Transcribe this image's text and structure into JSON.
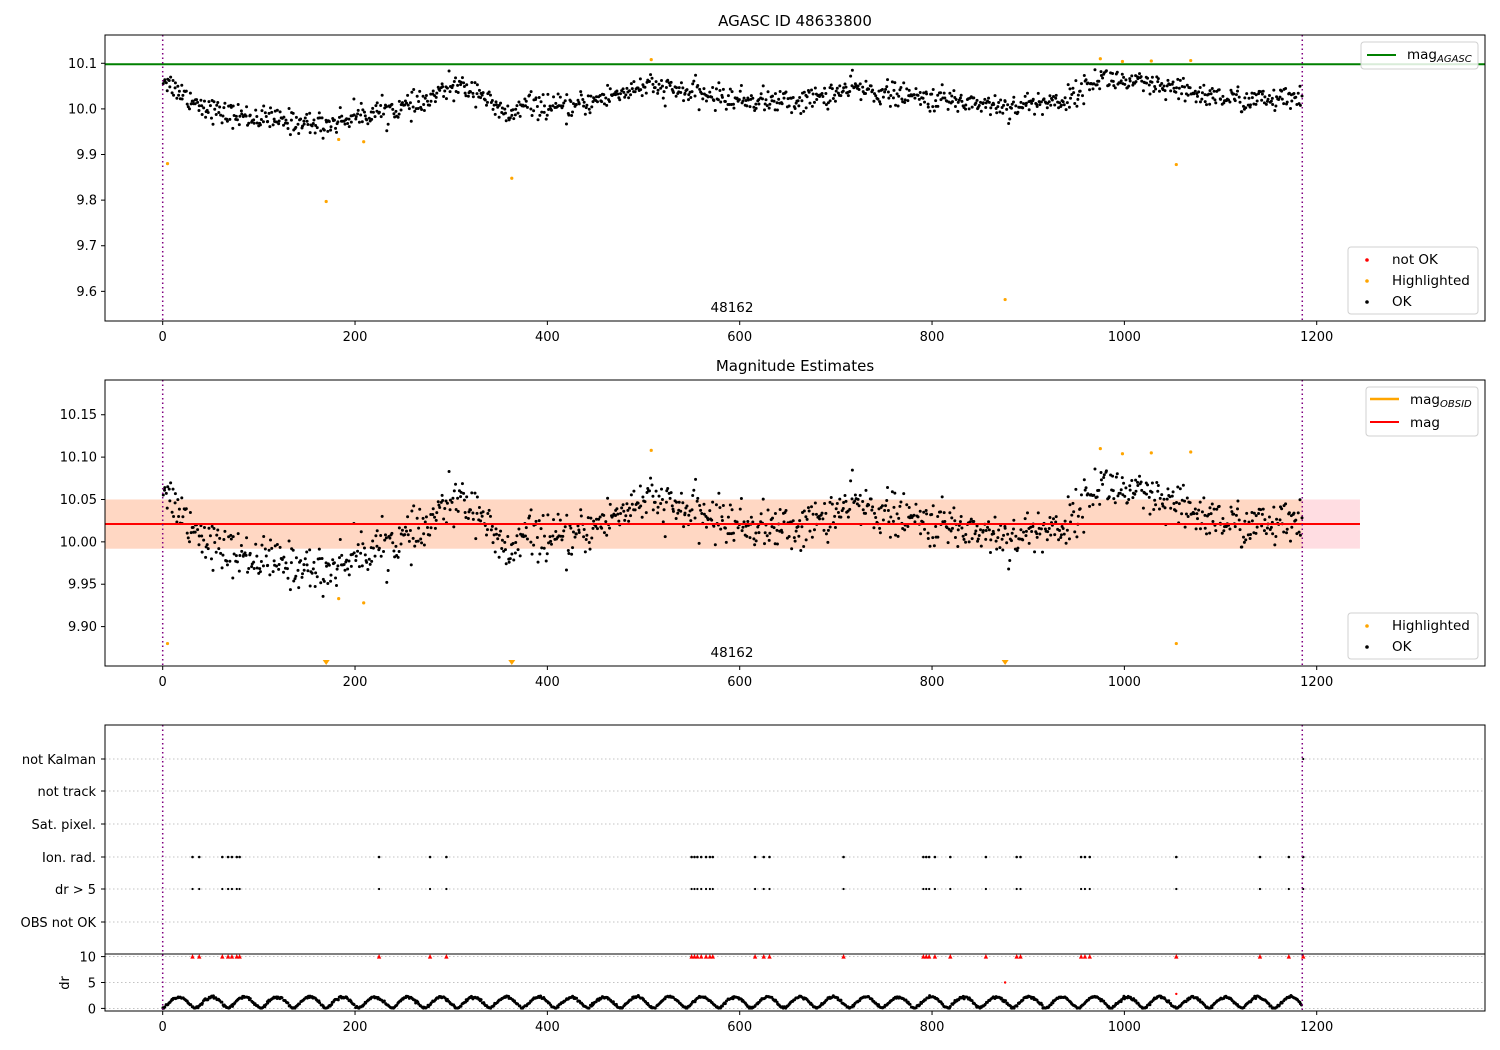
{
  "colors": {
    "ok": "#000000",
    "highlighted": "#ffa500",
    "not_ok": "#ff0000",
    "mag_agasc": "#008000",
    "mag_obsid": "#ffa500",
    "mag": "#ff0000",
    "band_outer": "#ffdde2",
    "band_inner": "#ffd7c3",
    "vline": "#800080",
    "grid": "#b0b0b0"
  },
  "chart_data": [
    {
      "type": "scatter",
      "title": "AGASC ID 48633800",
      "annotation": "48162",
      "xlim": [
        -60,
        1375
      ],
      "ylim": [
        9.535,
        10.162
      ],
      "xticks": [
        0,
        200,
        400,
        600,
        800,
        1000,
        1200
      ],
      "yticks": [
        9.6,
        9.7,
        9.8,
        9.9,
        10.0,
        10.1
      ],
      "ytick_labels": [
        "9.6",
        "9.7",
        "9.8",
        "9.9",
        "10.0",
        "10.1"
      ],
      "obs_boundaries": [
        0,
        1185
      ],
      "hline": {
        "name": "mag",
        "subscript": "AGASC",
        "y": 10.098
      },
      "legend_lines": [
        {
          "name": "mag",
          "subscript": "AGASC",
          "color": "#008000"
        }
      ],
      "legend_points": [
        "not OK",
        "Highlighted",
        "OK"
      ],
      "trend": [
        [
          0,
          10.07
        ],
        [
          10,
          10.05
        ],
        [
          30,
          10.02
        ],
        [
          60,
          9.99
        ],
        [
          120,
          9.975
        ],
        [
          170,
          9.965
        ],
        [
          200,
          9.985
        ],
        [
          240,
          10.0
        ],
        [
          270,
          10.01
        ],
        [
          300,
          10.05
        ],
        [
          330,
          10.04
        ],
        [
          345,
          10.0
        ],
        [
          360,
          9.985
        ],
        [
          380,
          10.01
        ],
        [
          420,
          10.0
        ],
        [
          460,
          10.025
        ],
        [
          500,
          10.05
        ],
        [
          550,
          10.035
        ],
        [
          600,
          10.02
        ],
        [
          660,
          10.015
        ],
        [
          720,
          10.045
        ],
        [
          780,
          10.025
        ],
        [
          840,
          10.015
        ],
        [
          880,
          10.005
        ],
        [
          940,
          10.02
        ],
        [
          975,
          10.07
        ],
        [
          1000,
          10.06
        ],
        [
          1040,
          10.045
        ],
        [
          1070,
          10.035
        ],
        [
          1120,
          10.02
        ],
        [
          1185,
          10.02
        ]
      ],
      "highlighted": [
        [
          5,
          9.88
        ],
        [
          170,
          9.797
        ],
        [
          183,
          9.933
        ],
        [
          209,
          9.928
        ],
        [
          363,
          9.848
        ],
        [
          508,
          10.108
        ],
        [
          876,
          9.582
        ],
        [
          975,
          10.11
        ],
        [
          998,
          10.104
        ],
        [
          1028,
          10.105
        ],
        [
          1054,
          9.878
        ],
        [
          1069,
          10.106
        ]
      ],
      "not_ok": []
    },
    {
      "type": "scatter",
      "title": "Magnitude Estimates",
      "annotation": "48162",
      "xlim": [
        -60,
        1375
      ],
      "ylim": [
        9.8535,
        10.191
      ],
      "xticks": [
        0,
        200,
        400,
        600,
        800,
        1000,
        1200
      ],
      "yticks": [
        9.9,
        9.95,
        10.0,
        10.05,
        10.1,
        10.15
      ],
      "ytick_labels": [
        "9.90",
        "9.95",
        "10.00",
        "10.05",
        "10.10",
        "10.15"
      ],
      "obs_boundaries": [
        0,
        1185
      ],
      "mag_line": {
        "name": "mag",
        "y": 10.021,
        "x_range": [
          -60,
          1245
        ]
      },
      "band_outer": [
        9.992,
        10.05
      ],
      "band_inner": [
        9.992,
        10.05
      ],
      "legend_lines": [
        {
          "name": "mag",
          "subscript": "OBSID",
          "color": "#ffa500"
        },
        {
          "name": "mag",
          "subscript": "",
          "color": "#ff0000"
        }
      ],
      "legend_points": [
        "Highlighted",
        "OK"
      ],
      "highlighted": [
        [
          5,
          9.88
        ],
        [
          183,
          9.933
        ],
        [
          209,
          9.928
        ],
        [
          508,
          10.108
        ],
        [
          975,
          10.11
        ],
        [
          998,
          10.104
        ],
        [
          1028,
          10.105
        ],
        [
          1054,
          9.88
        ],
        [
          1069,
          10.106
        ]
      ],
      "below_range_markers": [
        170,
        363,
        876
      ]
    },
    {
      "type": "scatter",
      "title": "",
      "xlim": [
        -60,
        1375
      ],
      "xticks": [
        0,
        200,
        400,
        600,
        800,
        1000,
        1200
      ],
      "obs_boundaries": [
        0,
        1185
      ],
      "flag_labels": [
        "not Kalman",
        "not track",
        "Sat. pixel.",
        "Ion. rad.",
        "dr > 5",
        "OBS not OK"
      ],
      "flag_times": [
        31,
        38,
        62,
        68,
        72,
        77,
        80,
        225,
        278,
        295,
        550,
        553,
        556,
        560,
        565,
        569,
        572,
        616,
        625,
        631,
        708,
        791,
        794,
        797,
        803,
        819,
        856,
        888,
        892,
        955,
        959,
        964,
        1054,
        1141,
        1171,
        1186
      ],
      "dr_ylabel": "dr",
      "dr_ylim": [
        -0.5,
        10.5
      ],
      "dr_yticks": [
        0,
        5,
        10
      ],
      "dr_outliers": [
        [
          876,
          5.0
        ],
        [
          1054,
          2.8
        ]
      ]
    }
  ]
}
